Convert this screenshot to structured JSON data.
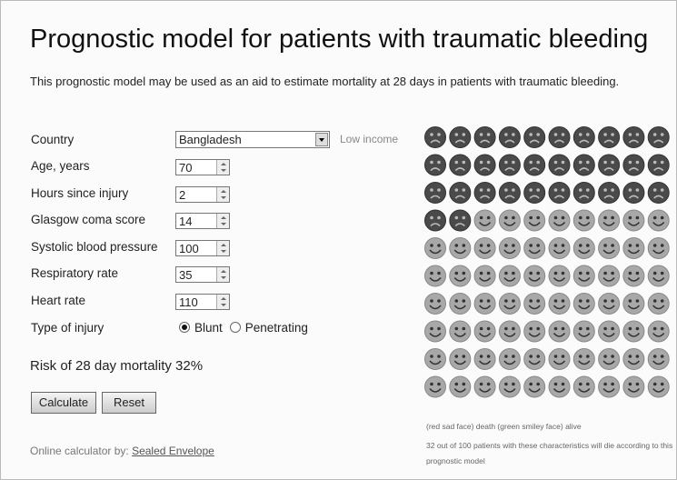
{
  "title": "Prognostic model for patients with traumatic bleeding",
  "description": "This prognostic model may be used as an aid to estimate mortality at 28 days in patients with traumatic bleeding.",
  "country": {
    "label": "Country",
    "value": "Bangladesh",
    "income": "Low income"
  },
  "fields": [
    {
      "label": "Age, years",
      "value": 70
    },
    {
      "label": "Hours since injury",
      "value": 2
    },
    {
      "label": "Glasgow coma score",
      "value": 14
    },
    {
      "label": "Systolic blood pressure",
      "value": 100
    },
    {
      "label": "Respiratory rate",
      "value": 35
    },
    {
      "label": "Heart rate",
      "value": 110
    }
  ],
  "injury_type": {
    "label": "Type of injury",
    "options": [
      "Blunt",
      "Penetrating"
    ],
    "selected": 0
  },
  "risk": "Risk of 28 day mortality 32%",
  "buttons": [
    "Calculate",
    "Reset"
  ],
  "footer": {
    "text": "Online calculator by:",
    "link": "Sealed Envelope"
  },
  "faces": {
    "total": 100,
    "deaths": 32,
    "legend": "(red sad face) death (green smiley face) alive",
    "caption": "32 out of 100 patients with these characteristics will die according to this prognostic model"
  }
}
